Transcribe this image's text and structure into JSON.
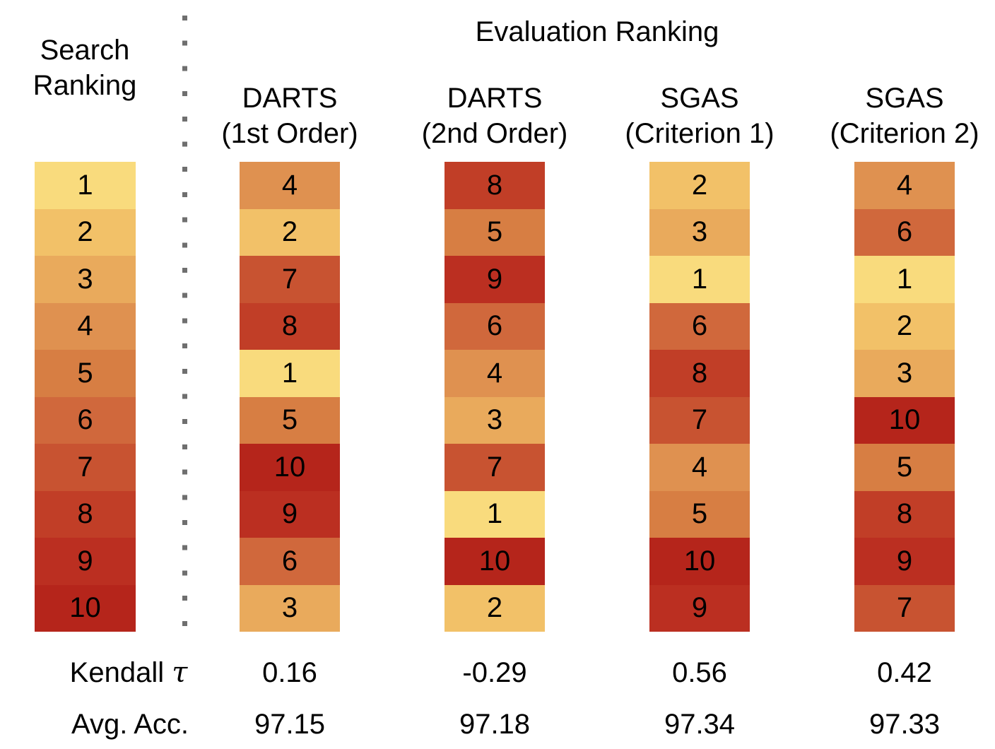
{
  "search_column": {
    "title_line1": "Search",
    "title_line2": "Ranking",
    "values": [
      1,
      2,
      3,
      4,
      5,
      6,
      7,
      8,
      9,
      10
    ]
  },
  "evaluation": {
    "title": "Evaluation Ranking"
  },
  "columns": [
    {
      "name_line1": "DARTS",
      "name_line2": "(1st Order)",
      "values": [
        4,
        2,
        7,
        8,
        1,
        5,
        10,
        9,
        6,
        3
      ],
      "kendall_tau": "0.16",
      "avg_acc": "97.15"
    },
    {
      "name_line1": "DARTS",
      "name_line2": "(2nd Order)",
      "values": [
        8,
        5,
        9,
        6,
        4,
        3,
        7,
        1,
        10,
        2
      ],
      "kendall_tau": "-0.29",
      "avg_acc": "97.18"
    },
    {
      "name_line1": "SGAS",
      "name_line2": "(Criterion 1)",
      "values": [
        2,
        3,
        1,
        6,
        8,
        7,
        4,
        5,
        10,
        9
      ],
      "kendall_tau": "0.56",
      "avg_acc": "97.34"
    },
    {
      "name_line1": "SGAS",
      "name_line2": "(Criterion 2)",
      "values": [
        4,
        6,
        1,
        2,
        3,
        10,
        5,
        8,
        9,
        7
      ],
      "kendall_tau": "0.42",
      "avg_acc": "97.33"
    }
  ],
  "stats": {
    "kendall_label": "Kendall",
    "tau_symbol": "τ",
    "avg_acc_label": "Avg. Acc."
  },
  "colormap": [
    "#f9db7d",
    "#f2c168",
    "#e9aa5c",
    "#df9150",
    "#d77e43",
    "#d0683c",
    "#c85331",
    "#c13e27",
    "#bb2f21",
    "#b5251b"
  ],
  "divider_color": "#6f6f6f",
  "chart_data": {
    "type": "heatmap",
    "title": "Evaluation Ranking",
    "row_axis": {
      "label": "Search Ranking",
      "values": [
        1,
        2,
        3,
        4,
        5,
        6,
        7,
        8,
        9,
        10
      ]
    },
    "categories": [
      "DARTS (1st Order)",
      "DARTS (2nd Order)",
      "SGAS (Criterion 1)",
      "SGAS (Criterion 2)"
    ],
    "series": [
      {
        "name": "DARTS (1st Order)",
        "evaluation_ranking": [
          4,
          2,
          7,
          8,
          1,
          5,
          10,
          9,
          6,
          3
        ],
        "kendall_tau": 0.16,
        "avg_acc": 97.15
      },
      {
        "name": "DARTS (2nd Order)",
        "evaluation_ranking": [
          8,
          5,
          9,
          6,
          4,
          3,
          7,
          1,
          10,
          2
        ],
        "kendall_tau": -0.29,
        "avg_acc": 97.18
      },
      {
        "name": "SGAS (Criterion 1)",
        "evaluation_ranking": [
          2,
          3,
          1,
          6,
          8,
          7,
          4,
          5,
          10,
          9
        ],
        "kendall_tau": 0.56,
        "avg_acc": 97.34
      },
      {
        "name": "SGAS (Criterion 2)",
        "evaluation_ranking": [
          4,
          6,
          1,
          2,
          3,
          10,
          5,
          8,
          9,
          7
        ],
        "kendall_tau": 0.42,
        "avg_acc": 97.33
      }
    ],
    "stat_rows": [
      {
        "label": "Kendall τ",
        "values": [
          0.16,
          -0.29,
          0.56,
          0.42
        ]
      },
      {
        "label": "Avg. Acc.",
        "values": [
          97.15,
          97.18,
          97.34,
          97.33
        ]
      }
    ],
    "color_encoding": {
      "description": "Cell fill encodes rank value: 1 = light yellow through 10 = dark red",
      "palette_rank_1_to_10": [
        "#f9db7d",
        "#f2c168",
        "#e9aa5c",
        "#df9150",
        "#d77e43",
        "#d0683c",
        "#c85331",
        "#c13e27",
        "#bb2f21",
        "#b5251b"
      ]
    },
    "grid": false,
    "legend_position": "none"
  }
}
